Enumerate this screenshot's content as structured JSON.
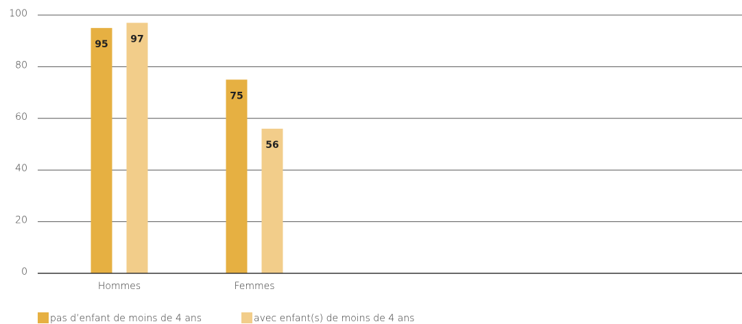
{
  "chart_data": {
    "type": "bar",
    "categories": [
      "Hommes",
      "Femmes"
    ],
    "series": [
      {
        "name": "pas d’enfant de moins de 4 ans",
        "color": "#e6b042",
        "values": [
          95,
          75
        ]
      },
      {
        "name": "avec enfant(s) de moins de 4 ans",
        "color": "#f2cd8a",
        "values": [
          97,
          56
        ]
      }
    ],
    "ylim": [
      0,
      100
    ],
    "yticks": [
      0,
      20,
      40,
      60,
      80,
      100
    ],
    "grid": true,
    "legend": "bottom"
  }
}
